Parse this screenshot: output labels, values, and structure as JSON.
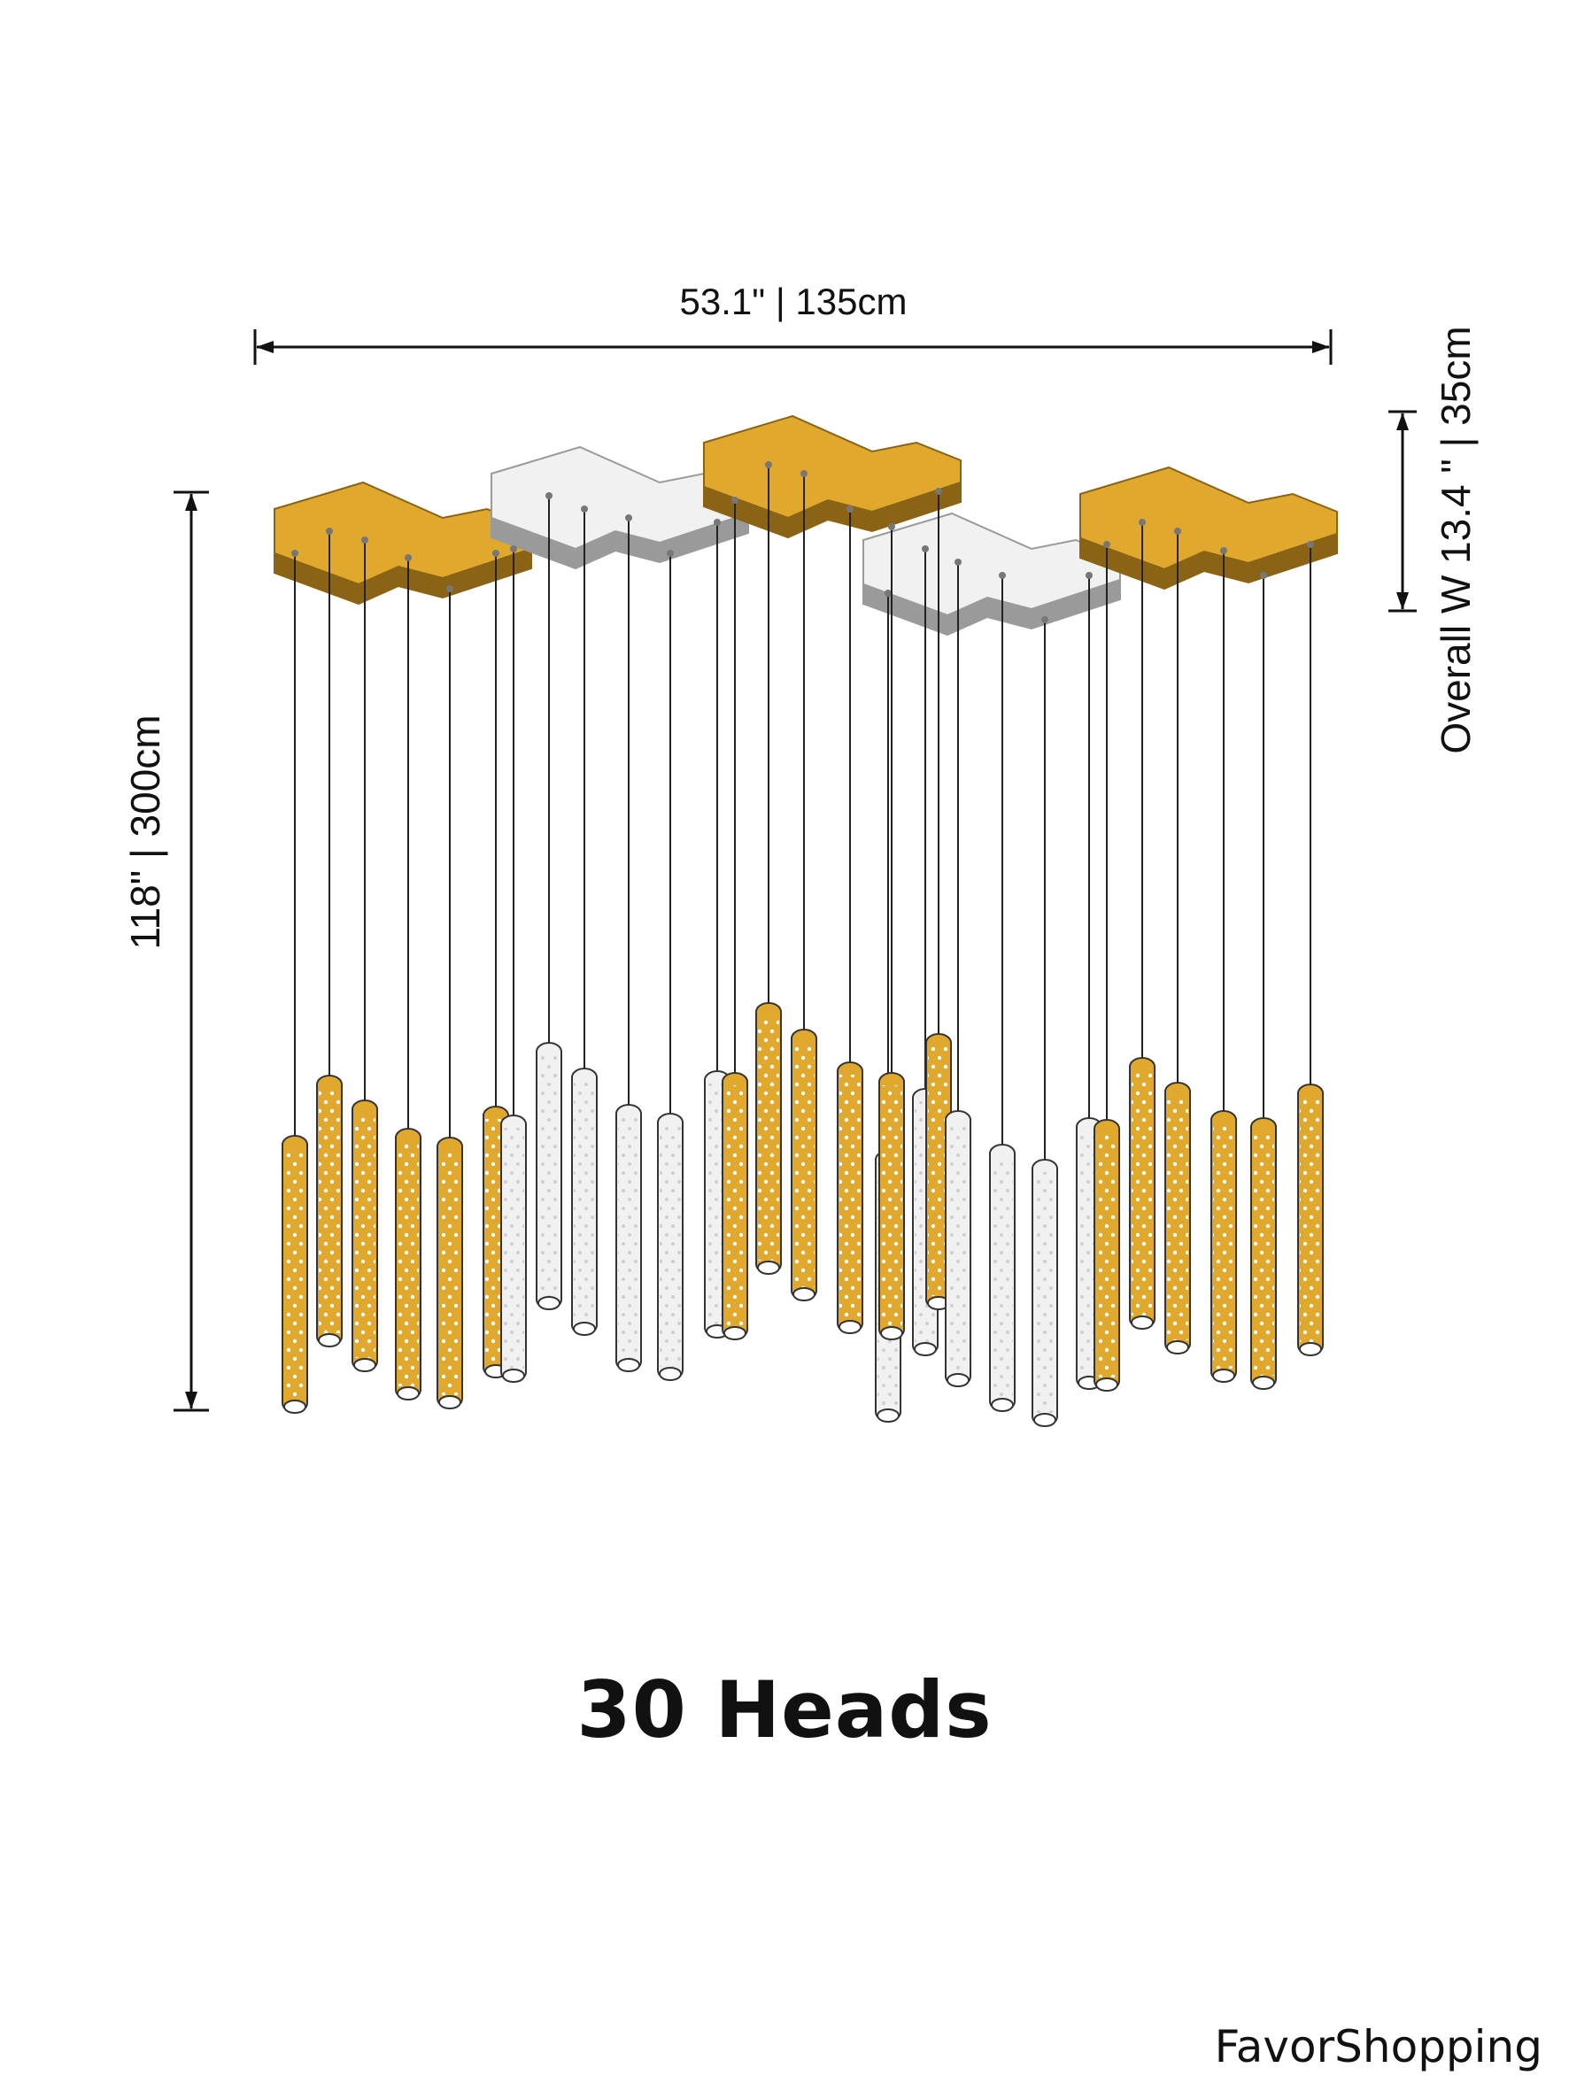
{
  "dimensions": {
    "width_label": "53.1\" | 135cm",
    "height_label": "118\" | 300cm",
    "depth_label": "Overall W 13.4 \" | 35cm"
  },
  "caption": "30 Heads",
  "brand": "FavorShopping",
  "colors": {
    "gold": "#e0a92e",
    "gold_edge": "#8a6414",
    "silver": "#f1f1f1",
    "silver_edge": "#9a9a9a",
    "line": "#222222"
  },
  "pendant_count": 30
}
